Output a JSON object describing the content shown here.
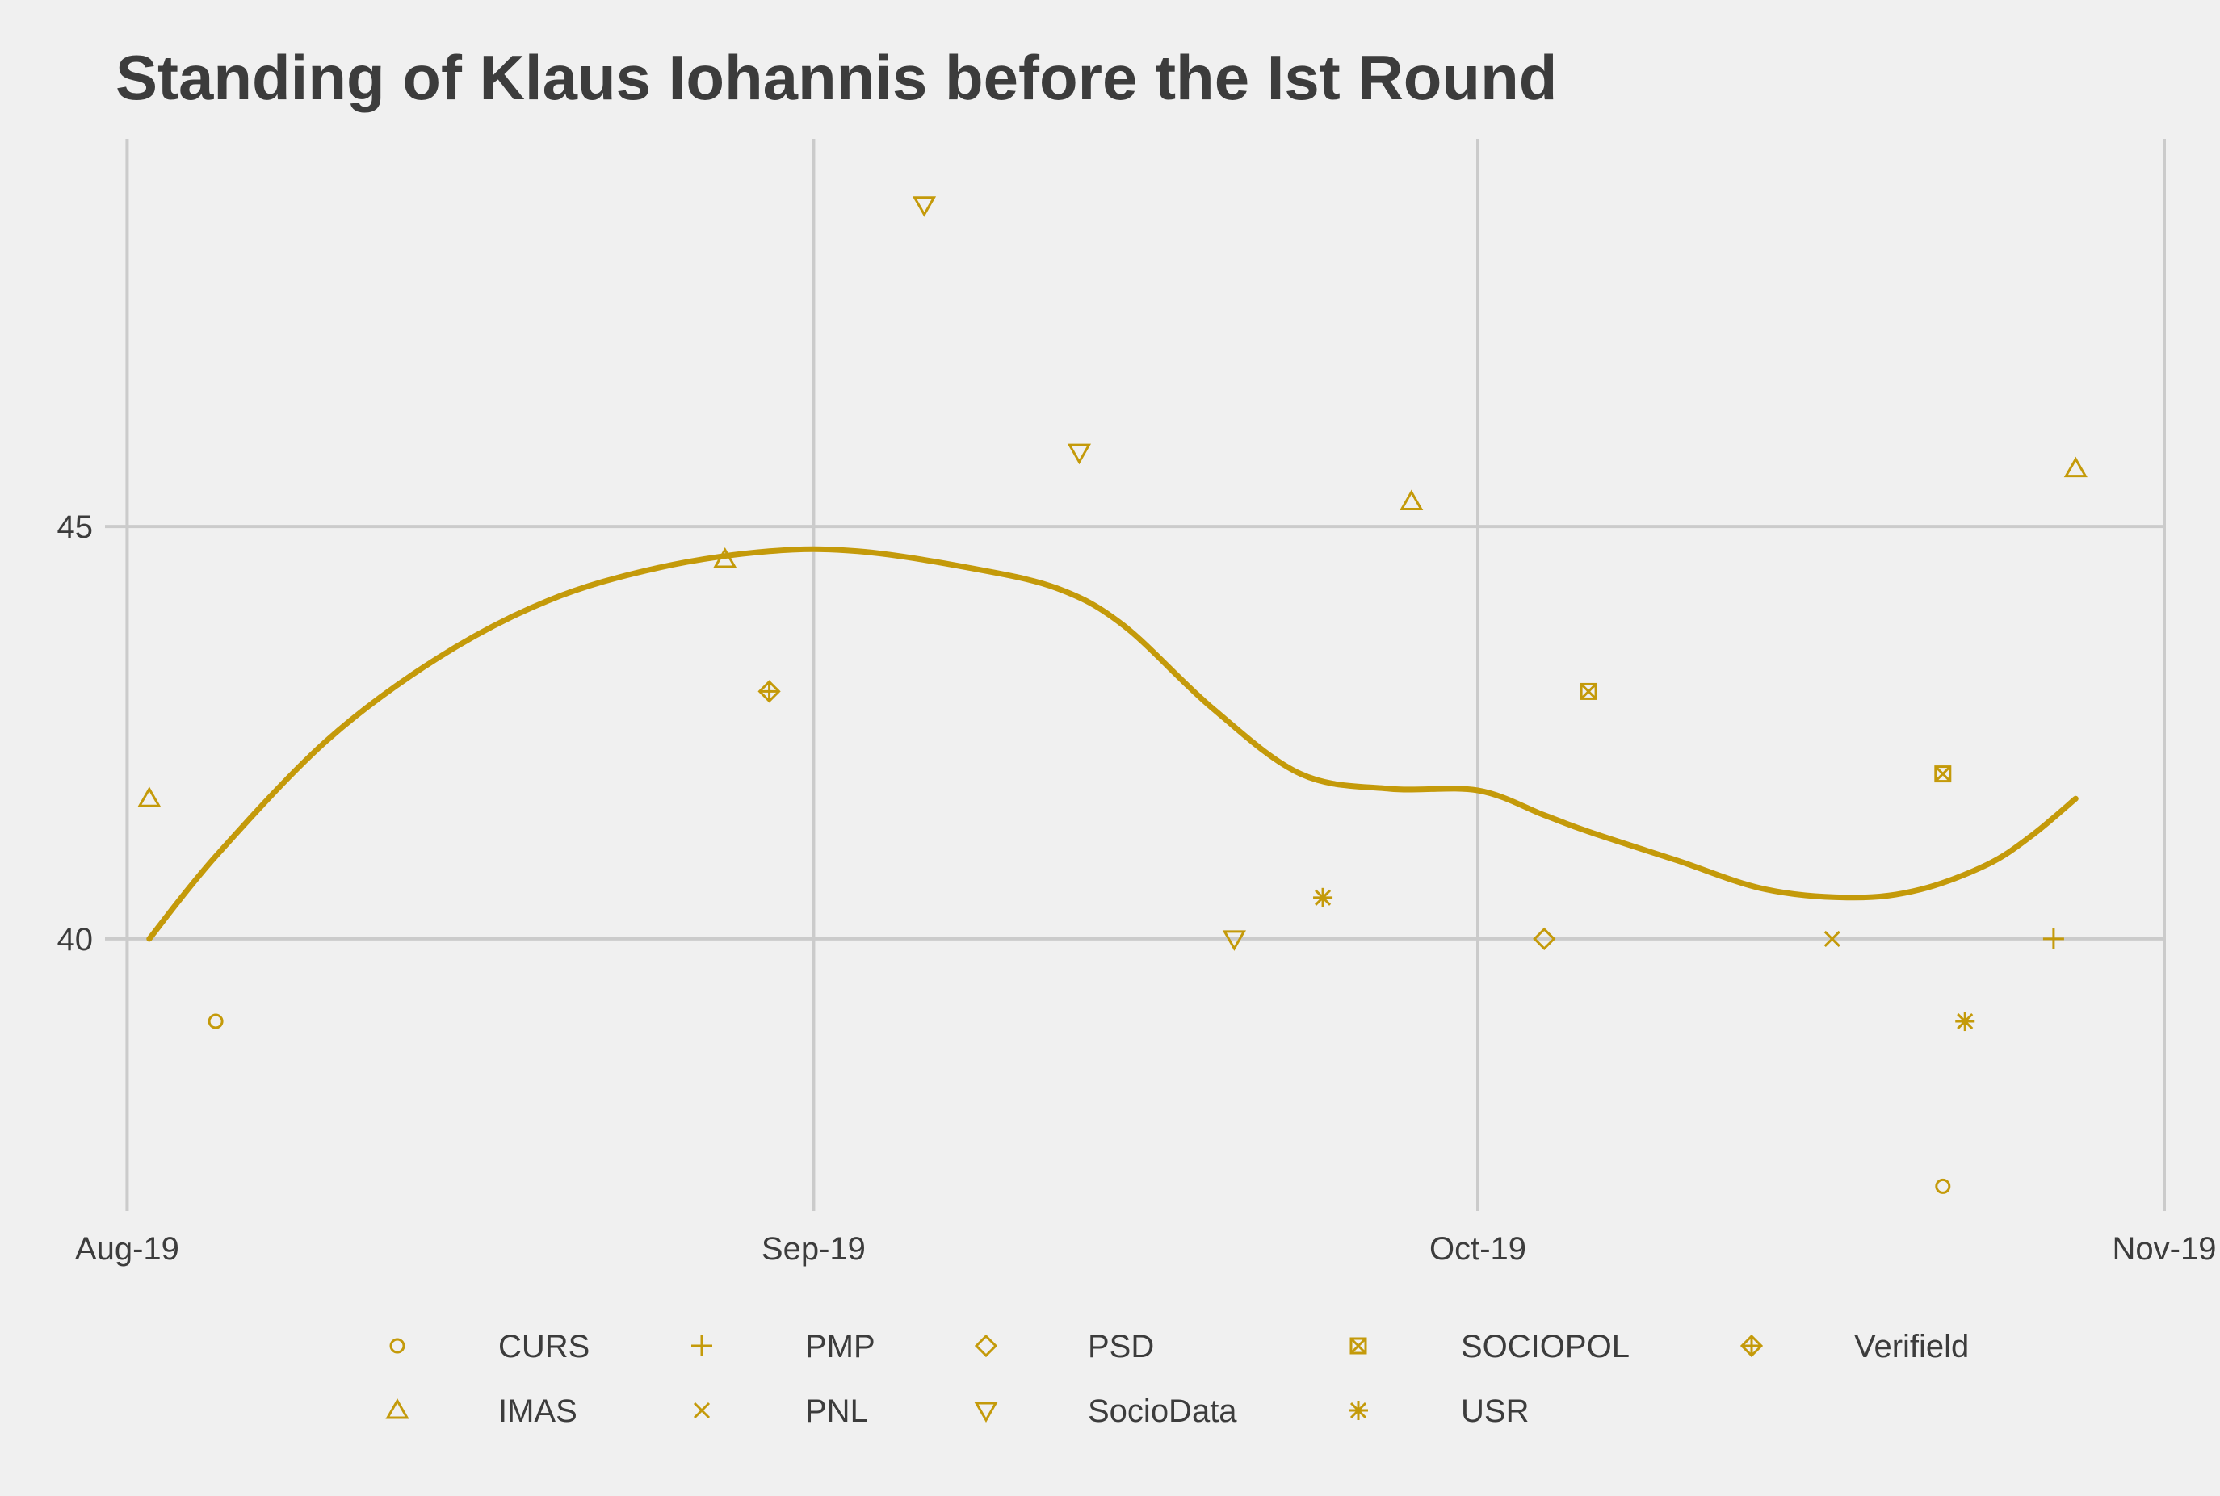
{
  "chart_data": {
    "type": "scatter",
    "title": "Standing of Klaus Iohannis before the Ist Round",
    "xlabel": "",
    "ylabel": "",
    "x_ticks": [
      "Aug-19",
      "Sep-19",
      "Oct-19",
      "Nov-19"
    ],
    "x_tick_dates": [
      "2019-08-01",
      "2019-09-01",
      "2019-10-01",
      "2019-11-01"
    ],
    "y_ticks": [
      40,
      45
    ],
    "xlim": [
      "2019-07-31",
      "2019-11-01"
    ],
    "ylim": [
      36.7,
      49.7
    ],
    "grid": true,
    "legend_position": "bottom",
    "color": "#c49a0a",
    "series": [
      {
        "name": "CURS",
        "shape": "circle",
        "points": [
          {
            "x": "2019-08-05",
            "y": 39.0
          },
          {
            "x": "2019-10-22",
            "y": 37.0
          }
        ]
      },
      {
        "name": "IMAS",
        "shape": "triangle-up",
        "points": [
          {
            "x": "2019-08-02",
            "y": 41.7
          },
          {
            "x": "2019-08-28",
            "y": 44.6
          },
          {
            "x": "2019-09-28",
            "y": 45.3
          },
          {
            "x": "2019-10-28",
            "y": 45.7
          }
        ]
      },
      {
        "name": "PMP",
        "shape": "plus",
        "points": [
          {
            "x": "2019-10-27",
            "y": 40.0
          }
        ]
      },
      {
        "name": "PNL",
        "shape": "cross",
        "points": [
          {
            "x": "2019-10-17",
            "y": 40.0
          }
        ]
      },
      {
        "name": "PSD",
        "shape": "diamond",
        "points": [
          {
            "x": "2019-10-04",
            "y": 40.0
          }
        ]
      },
      {
        "name": "SocioData",
        "shape": "triangle-down",
        "points": [
          {
            "x": "2019-09-06",
            "y": 48.9
          },
          {
            "x": "2019-09-13",
            "y": 45.9
          },
          {
            "x": "2019-09-20",
            "y": 40.0
          }
        ]
      },
      {
        "name": "SOCIOPOL",
        "shape": "square-cross",
        "points": [
          {
            "x": "2019-10-06",
            "y": 43.0
          },
          {
            "x": "2019-10-22",
            "y": 42.0
          }
        ]
      },
      {
        "name": "USR",
        "shape": "asterisk",
        "points": [
          {
            "x": "2019-09-24",
            "y": 40.5
          },
          {
            "x": "2019-10-23",
            "y": 39.0
          }
        ]
      },
      {
        "name": "Verifield",
        "shape": "diamond-plus",
        "points": [
          {
            "x": "2019-08-30",
            "y": 43.0
          }
        ]
      }
    ],
    "trend": {
      "type": "loess",
      "points": [
        {
          "x": "2019-08-02",
          "y": 40.0
        },
        {
          "x": "2019-08-05",
          "y": 41.0
        },
        {
          "x": "2019-08-10",
          "y": 42.4
        },
        {
          "x": "2019-08-15",
          "y": 43.4
        },
        {
          "x": "2019-08-20",
          "y": 44.1
        },
        {
          "x": "2019-08-25",
          "y": 44.5
        },
        {
          "x": "2019-08-30",
          "y": 44.7
        },
        {
          "x": "2019-09-03",
          "y": 44.7
        },
        {
          "x": "2019-09-08",
          "y": 44.5
        },
        {
          "x": "2019-09-12",
          "y": 44.25
        },
        {
          "x": "2019-09-15",
          "y": 43.8
        },
        {
          "x": "2019-09-19",
          "y": 42.8
        },
        {
          "x": "2019-09-23",
          "y": 42.0
        },
        {
          "x": "2019-09-27",
          "y": 41.82
        },
        {
          "x": "2019-10-01",
          "y": 41.8
        },
        {
          "x": "2019-10-04",
          "y": 41.5
        },
        {
          "x": "2019-10-06",
          "y": 41.3
        },
        {
          "x": "2019-10-10",
          "y": 40.95
        },
        {
          "x": "2019-10-14",
          "y": 40.6
        },
        {
          "x": "2019-10-18",
          "y": 40.5
        },
        {
          "x": "2019-10-21",
          "y": 40.6
        },
        {
          "x": "2019-10-24",
          "y": 40.9
        },
        {
          "x": "2019-10-26",
          "y": 41.25
        },
        {
          "x": "2019-10-28",
          "y": 41.7
        }
      ]
    }
  },
  "legend": {
    "items": [
      {
        "label": "CURS",
        "shape": "circle"
      },
      {
        "label": "PMP",
        "shape": "plus"
      },
      {
        "label": "PSD",
        "shape": "diamond"
      },
      {
        "label": "SOCIOPOL",
        "shape": "square-cross"
      },
      {
        "label": "Verifield",
        "shape": "diamond-plus"
      },
      {
        "label": "IMAS",
        "shape": "triangle-up"
      },
      {
        "label": "PNL",
        "shape": "cross"
      },
      {
        "label": "SocioData",
        "shape": "triangle-down"
      },
      {
        "label": "USR",
        "shape": "asterisk"
      }
    ]
  }
}
